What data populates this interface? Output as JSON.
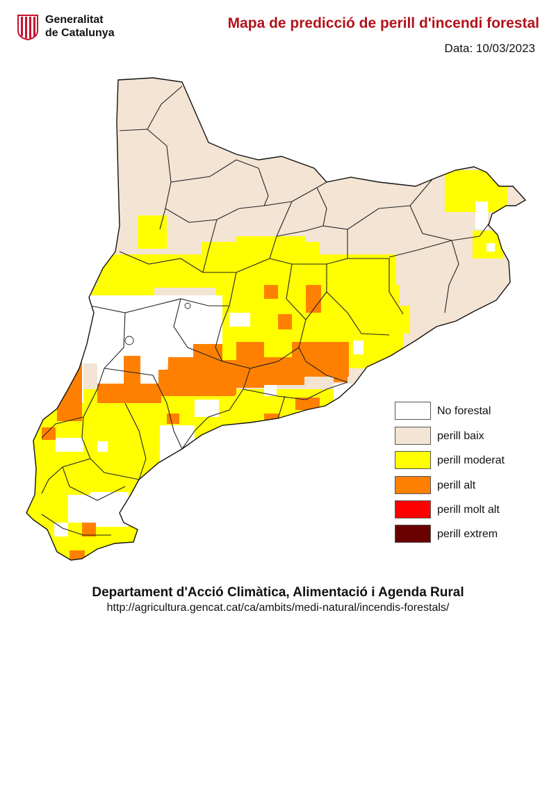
{
  "header": {
    "logo_line1": "Generalitat",
    "logo_line2": "de Catalunya",
    "title": "Mapa de predicció de perill d'incendi forestal",
    "date": "Data: 10/03/2023"
  },
  "colors": {
    "no_forestal": "#ffffff",
    "perill_baix": "#f3e4d4",
    "perill_moderat": "#ffff00",
    "perill_alt": "#ff8000",
    "perill_molt_alt": "#ff0000",
    "perill_extrem": "#6b0000",
    "title": "#b3121b",
    "boundary": "#222222"
  },
  "legend": [
    {
      "label": "No forestal",
      "color": "#ffffff"
    },
    {
      "label": "perill baix",
      "color": "#f3e4d4"
    },
    {
      "label": "perill moderat",
      "color": "#ffff00"
    },
    {
      "label": "perill alt",
      "color": "#ff8000"
    },
    {
      "label": "perill molt alt",
      "color": "#ff0000"
    },
    {
      "label": "perill extrem",
      "color": "#6b0000"
    }
  ],
  "footer": {
    "department": "Departament d'Acció Climàtica, Alimentació i Agenda Rural",
    "url": "http://agricultura.gencat.cat/ca/ambits/medi-natural/incendis-forestals/"
  }
}
